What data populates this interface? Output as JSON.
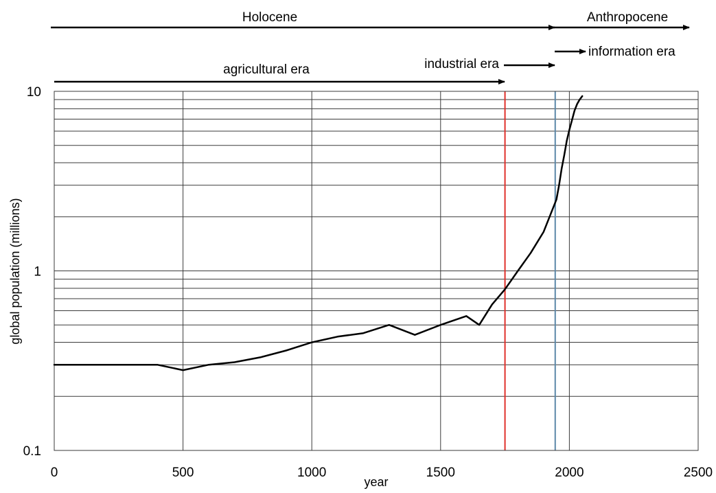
{
  "chart_data": {
    "type": "line",
    "xlabel": "year",
    "ylabel": "global population (millions)",
    "xlim": [
      0,
      2500
    ],
    "ylim": [
      0.1,
      10
    ],
    "yscale": "log",
    "grid": true,
    "x_ticks": [
      0,
      500,
      1000,
      1500,
      2000,
      2500
    ],
    "x_tick_labels": [
      "0",
      "500",
      "1000",
      "1500",
      "2000",
      "2500"
    ],
    "y_ticks": [
      0.1,
      1,
      10
    ],
    "y_tick_labels": [
      "0.1",
      "1",
      "10"
    ],
    "series": [
      {
        "color": "#000000",
        "x": [
          0,
          400,
          500,
          600,
          700,
          800,
          900,
          1000,
          1100,
          1200,
          1300,
          1400,
          1500,
          1600,
          1650,
          1700,
          1750,
          1800,
          1850,
          1900,
          1950,
          1960,
          1970,
          1980,
          1990,
          2000,
          2010,
          2020,
          2030,
          2040,
          2050
        ],
        "y": [
          0.3,
          0.3,
          0.28,
          0.3,
          0.31,
          0.33,
          0.36,
          0.4,
          0.43,
          0.45,
          0.5,
          0.44,
          0.5,
          0.56,
          0.5,
          0.65,
          0.79,
          1.0,
          1.26,
          1.65,
          2.5,
          3.0,
          3.7,
          4.4,
          5.3,
          6.1,
          6.9,
          7.8,
          8.5,
          9.0,
          9.4
        ]
      }
    ],
    "reference_lines": [
      {
        "x": 1750,
        "color": "#e0302a"
      },
      {
        "x": 1945,
        "color": "#5b87a8"
      }
    ],
    "era_arrows": [
      {
        "label": "Holocene",
        "x_start": 0,
        "x_end": 1945
      },
      {
        "label": "Anthropocene",
        "x_start": 1945,
        "x_end": 2500
      },
      {
        "label": "agricultural era",
        "x_start": 0,
        "x_end": 1750
      },
      {
        "label": "industrial era",
        "x_start": 1750,
        "x_end": 1945
      },
      {
        "label": "information era",
        "x_start": 1945,
        "x_end": 2050
      }
    ]
  }
}
